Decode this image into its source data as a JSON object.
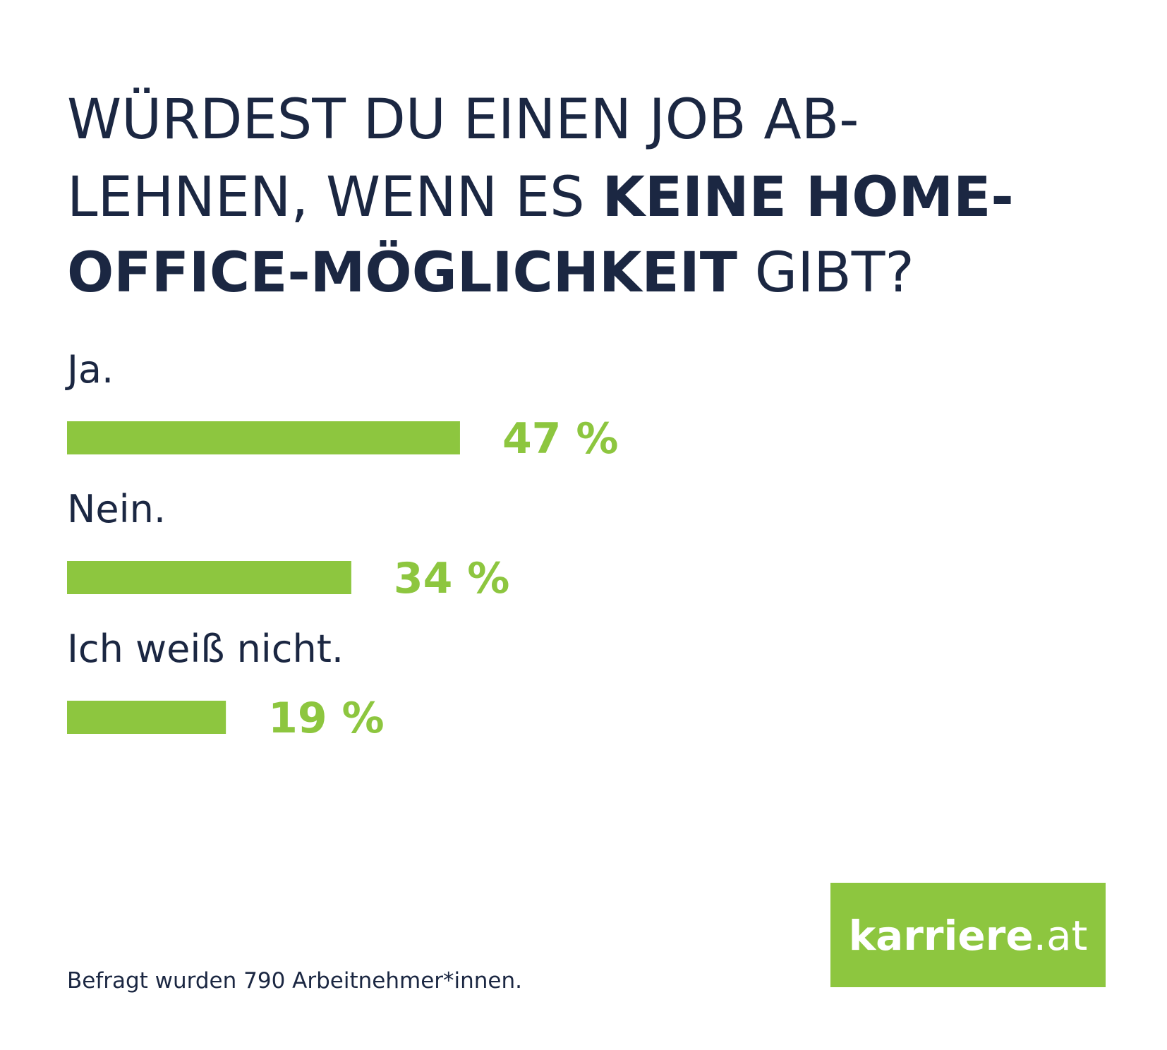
{
  "chart_data": {
    "type": "bar",
    "title": [
      "WÜRDEST DU EINEN JOB AB-",
      "LEHNEN, WENN ES ",
      "KEINE HOME-",
      "OFFICE-MÖGLICHKEIT",
      " GIBT?"
    ],
    "categories": [
      "Ja.",
      "Nein.",
      "Ich weiß nicht."
    ],
    "values": [
      47,
      34,
      19
    ],
    "value_labels": [
      "47 %",
      "34 %",
      "19 %"
    ],
    "color": "#8dc63f",
    "note": "Befragt wurden 790 Arbeitnehmer*innen.",
    "logo": [
      "karriere",
      ".at"
    ]
  }
}
